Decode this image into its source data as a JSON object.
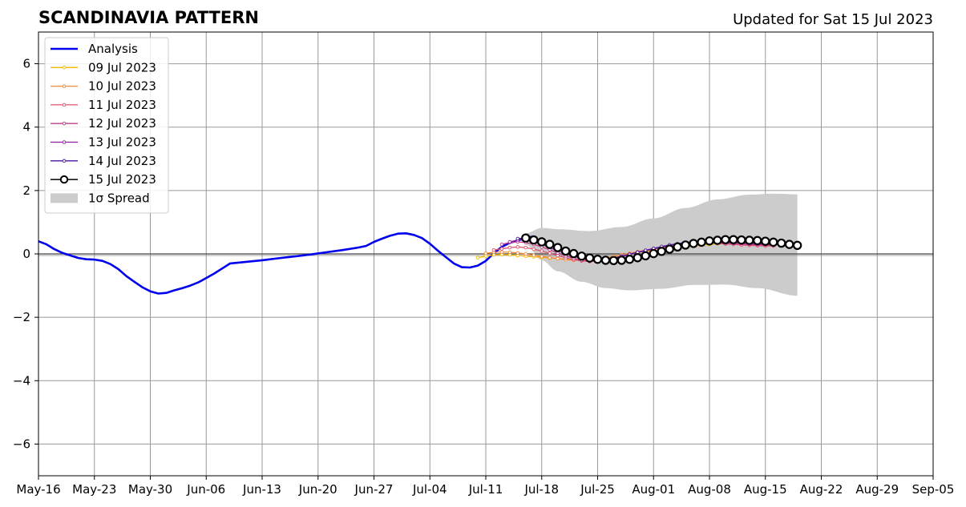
{
  "header": {
    "title": "SCANDINAVIA PATTERN",
    "updated": "Updated for Sat 15 Jul 2023"
  },
  "chart_data": {
    "type": "line",
    "title": "SCANDINAVIA PATTERN",
    "xlabel": "",
    "ylabel": "",
    "x_axis": {
      "type": "date",
      "range": [
        "2023-05-16",
        "2023-09-05"
      ],
      "tick_labels": [
        "May-16",
        "May-23",
        "May-30",
        "Jun-06",
        "Jun-13",
        "Jun-20",
        "Jun-27",
        "Jul-04",
        "Jul-11",
        "Jul-18",
        "Jul-25",
        "Aug-01",
        "Aug-08",
        "Aug-15",
        "Aug-22",
        "Aug-29",
        "Sep-05"
      ]
    },
    "y_axis": {
      "range": [
        -7,
        7
      ],
      "ticks": [
        -6,
        -4,
        -2,
        0,
        2,
        4,
        6
      ],
      "tick_labels": [
        "−6",
        "−4",
        "−2",
        "0",
        "2",
        "4",
        "6"
      ]
    },
    "grid": true,
    "zero_line": true,
    "legend_position": "top-left",
    "series": [
      {
        "name": "Analysis",
        "kind": "line",
        "color": "#0000ee",
        "points": [
          [
            "2023-05-16",
            0.4
          ],
          [
            "2023-05-17",
            0.3
          ],
          [
            "2023-05-18",
            0.15
          ],
          [
            "2023-05-19",
            0.03
          ],
          [
            "2023-05-20",
            -0.05
          ],
          [
            "2023-05-21",
            -0.13
          ],
          [
            "2023-05-22",
            -0.17
          ],
          [
            "2023-05-23",
            -0.18
          ],
          [
            "2023-05-24",
            -0.22
          ],
          [
            "2023-05-25",
            -0.32
          ],
          [
            "2023-05-26",
            -0.48
          ],
          [
            "2023-05-27",
            -0.7
          ],
          [
            "2023-05-28",
            -0.88
          ],
          [
            "2023-05-29",
            -1.05
          ],
          [
            "2023-05-30",
            -1.18
          ],
          [
            "2023-05-31",
            -1.25
          ],
          [
            "2023-06-01",
            -1.23
          ],
          [
            "2023-06-02",
            -1.15
          ],
          [
            "2023-06-03",
            -1.08
          ],
          [
            "2023-06-04",
            -1.0
          ],
          [
            "2023-06-05",
            -0.9
          ],
          [
            "2023-06-06",
            -0.76
          ],
          [
            "2023-06-07",
            -0.62
          ],
          [
            "2023-06-08",
            -0.46
          ],
          [
            "2023-06-09",
            -0.3
          ],
          [
            "2023-06-11",
            -0.25
          ],
          [
            "2023-06-13",
            -0.2
          ],
          [
            "2023-06-15",
            -0.14
          ],
          [
            "2023-06-17",
            -0.08
          ],
          [
            "2023-06-19",
            -0.02
          ],
          [
            "2023-06-21",
            0.05
          ],
          [
            "2023-06-23",
            0.12
          ],
          [
            "2023-06-25",
            0.2
          ],
          [
            "2023-06-26",
            0.25
          ],
          [
            "2023-06-27",
            0.38
          ],
          [
            "2023-06-28",
            0.48
          ],
          [
            "2023-06-29",
            0.57
          ],
          [
            "2023-06-30",
            0.64
          ],
          [
            "2023-07-01",
            0.65
          ],
          [
            "2023-07-02",
            0.6
          ],
          [
            "2023-07-03",
            0.5
          ],
          [
            "2023-07-04",
            0.32
          ],
          [
            "2023-07-05",
            0.1
          ],
          [
            "2023-07-06",
            -0.1
          ],
          [
            "2023-07-07",
            -0.3
          ],
          [
            "2023-07-08",
            -0.42
          ],
          [
            "2023-07-09",
            -0.43
          ],
          [
            "2023-07-10",
            -0.37
          ],
          [
            "2023-07-11",
            -0.22
          ],
          [
            "2023-07-12",
            0.02
          ],
          [
            "2023-07-13",
            0.22
          ],
          [
            "2023-07-14",
            0.35
          ],
          [
            "2023-07-15",
            0.42
          ],
          [
            "2023-07-16",
            0.5
          ],
          [
            "2023-07-17",
            0.55
          ]
        ]
      },
      {
        "name": "09 Jul 2023",
        "kind": "forecast",
        "color": "#f5b800",
        "start": "2023-07-10",
        "values": [
          -0.12,
          -0.07,
          -0.03,
          -0.02,
          -0.03,
          -0.05,
          -0.07,
          -0.09,
          -0.11,
          -0.13,
          -0.15,
          -0.17,
          -0.18,
          -0.18,
          -0.17,
          -0.15,
          -0.12,
          -0.08,
          -0.04,
          0.0,
          0.04,
          0.08,
          0.11,
          0.14,
          0.17,
          0.2,
          0.22,
          0.25,
          0.27,
          0.3,
          0.32,
          0.34,
          0.35,
          0.36,
          0.36,
          0.35,
          0.34,
          0.33
        ]
      },
      {
        "name": "10 Jul 2023",
        "kind": "forecast",
        "color": "#f08a38",
        "start": "2023-07-11",
        "values": [
          0.02,
          0.05,
          0.06,
          0.05,
          0.03,
          0.0,
          -0.04,
          -0.08,
          -0.12,
          -0.15,
          -0.18,
          -0.2,
          -0.21,
          -0.2,
          -0.17,
          -0.13,
          -0.08,
          -0.03,
          0.02,
          0.07,
          0.11,
          0.15,
          0.19,
          0.23,
          0.26,
          0.29,
          0.32,
          0.34,
          0.35,
          0.36,
          0.36,
          0.35,
          0.34,
          0.33,
          0.32,
          0.31,
          0.3
        ]
      },
      {
        "name": "11 Jul 2023",
        "kind": "forecast",
        "color": "#e0506c",
        "start": "2023-07-12",
        "values": [
          0.12,
          0.16,
          0.2,
          0.22,
          0.2,
          0.15,
          0.09,
          0.02,
          -0.05,
          -0.12,
          -0.18,
          -0.22,
          -0.24,
          -0.23,
          -0.19,
          -0.14,
          -0.08,
          -0.02,
          0.04,
          0.1,
          0.15,
          0.2,
          0.24,
          0.28,
          0.31,
          0.33,
          0.34,
          0.34,
          0.33,
          0.31,
          0.3,
          0.28,
          0.27,
          0.26,
          0.25,
          0.25
        ]
      },
      {
        "name": "12 Jul 2023",
        "kind": "forecast",
        "color": "#c03c88",
        "start": "2023-07-13",
        "values": [
          0.3,
          0.36,
          0.38,
          0.36,
          0.3,
          0.22,
          0.13,
          0.03,
          -0.06,
          -0.14,
          -0.2,
          -0.22,
          -0.22,
          -0.19,
          -0.14,
          -0.08,
          -0.02,
          0.04,
          0.1,
          0.16,
          0.21,
          0.26,
          0.3,
          0.33,
          0.35,
          0.36,
          0.36,
          0.35,
          0.34,
          0.33,
          0.32,
          0.3,
          0.29,
          0.28,
          0.27
        ]
      },
      {
        "name": "13 Jul 2023",
        "kind": "forecast",
        "color": "#8e1fa0",
        "start": "2023-07-14",
        "values": [
          0.38,
          0.44,
          0.44,
          0.38,
          0.3,
          0.2,
          0.1,
          0.0,
          -0.08,
          -0.14,
          -0.18,
          -0.19,
          -0.17,
          -0.13,
          -0.07,
          -0.01,
          0.05,
          0.11,
          0.17,
          0.22,
          0.27,
          0.31,
          0.34,
          0.36,
          0.37,
          0.37,
          0.36,
          0.35,
          0.34,
          0.33,
          0.32,
          0.31,
          0.3,
          0.29
        ]
      },
      {
        "name": "14 Jul 2023",
        "kind": "forecast",
        "color": "#4a14a0",
        "start": "2023-07-15",
        "values": [
          0.48,
          0.5,
          0.46,
          0.38,
          0.28,
          0.17,
          0.06,
          -0.04,
          -0.11,
          -0.16,
          -0.18,
          -0.17,
          -0.13,
          -0.08,
          -0.02,
          0.05,
          0.11,
          0.17,
          0.23,
          0.28,
          0.32,
          0.36,
          0.38,
          0.39,
          0.4,
          0.4,
          0.39,
          0.38,
          0.37,
          0.36,
          0.34,
          0.33,
          0.31
        ]
      },
      {
        "name": "15 Jul 2023",
        "kind": "forecast_latest",
        "color": "#000000",
        "start": "2023-07-16",
        "values": [
          0.5,
          0.44,
          0.38,
          0.3,
          0.2,
          0.09,
          0.01,
          -0.07,
          -0.13,
          -0.17,
          -0.2,
          -0.21,
          -0.2,
          -0.17,
          -0.12,
          -0.06,
          0.01,
          0.08,
          0.15,
          0.22,
          0.28,
          0.33,
          0.37,
          0.41,
          0.43,
          0.45,
          0.45,
          0.44,
          0.43,
          0.42,
          0.4,
          0.37,
          0.34,
          0.3,
          0.27
        ]
      }
    ],
    "spread": {
      "name": "1σ Spread",
      "color": "#cccccc",
      "start": "2023-07-16",
      "end": "2023-08-19",
      "upper": [
        [
          "2023-07-16",
          0.65
        ],
        [
          "2023-07-18",
          0.82
        ],
        [
          "2023-07-20",
          0.78
        ],
        [
          "2023-07-24",
          0.72
        ],
        [
          "2023-07-28",
          0.85
        ],
        [
          "2023-08-01",
          1.12
        ],
        [
          "2023-08-05",
          1.45
        ],
        [
          "2023-08-09",
          1.72
        ],
        [
          "2023-08-13",
          1.87
        ],
        [
          "2023-08-16",
          1.9
        ],
        [
          "2023-08-19",
          1.88
        ]
      ],
      "lower": [
        [
          "2023-07-16",
          0.3
        ],
        [
          "2023-07-18",
          -0.2
        ],
        [
          "2023-07-20",
          -0.55
        ],
        [
          "2023-07-23",
          -0.88
        ],
        [
          "2023-07-26",
          -1.08
        ],
        [
          "2023-07-29",
          -1.15
        ],
        [
          "2023-08-02",
          -1.1
        ],
        [
          "2023-08-06",
          -0.98
        ],
        [
          "2023-08-10",
          -0.97
        ],
        [
          "2023-08-14",
          -1.08
        ],
        [
          "2023-08-19",
          -1.32
        ]
      ]
    }
  }
}
